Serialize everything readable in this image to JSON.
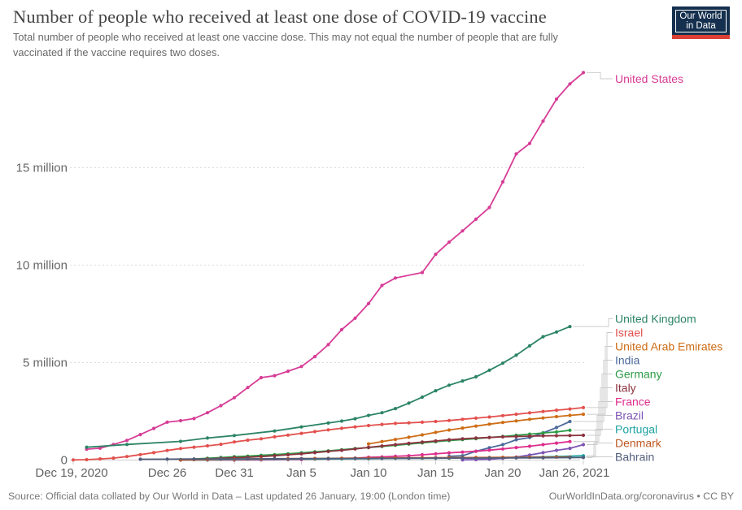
{
  "header": {
    "title": "Number of people who received at least one dose of COVID-19 vaccine",
    "subtitle": "Total number of people who received at least one vaccine dose. This may not equal the number of people that are fully vaccinated if the vaccine requires two doses.",
    "logo": {
      "line1": "Our World",
      "line2": "in Data",
      "bg_color": "#15304e",
      "accent_color": "#dc3f33"
    }
  },
  "footer": {
    "source_left": "Source: Official data collated by Our World in Data – Last updated 26 January, 19:00 (London time)",
    "source_right": "OurWorldInData.org/coronavirus • CC BY"
  },
  "chart_data": {
    "type": "line",
    "title": "Number of people who received at least one dose of COVID-19 vaccine",
    "x_unit": "days since Dec 19, 2020",
    "y_unit": "people (millions)",
    "ylim": [
      0,
      20.5
    ],
    "grid": true,
    "x_ticks": [
      {
        "day": 0,
        "label": "Dec 19, 2020"
      },
      {
        "day": 7,
        "label": "Dec 26"
      },
      {
        "day": 12,
        "label": "Dec 31"
      },
      {
        "day": 17,
        "label": "Jan 5"
      },
      {
        "day": 22,
        "label": "Jan 10"
      },
      {
        "day": 27,
        "label": "Jan 15"
      },
      {
        "day": 32,
        "label": "Jan 20"
      },
      {
        "day": 38,
        "label": "Jan 26, 2021"
      }
    ],
    "y_ticks": [
      {
        "value": 0,
        "label": "0"
      },
      {
        "value": 5,
        "label": "5 million"
      },
      {
        "value": 10,
        "label": "10 million"
      },
      {
        "value": 15,
        "label": "15 million"
      }
    ],
    "series": [
      {
        "name": "United States",
        "color": "#d73c96",
        "points": [
          [
            1,
            0.56
          ],
          [
            2,
            0.61
          ],
          [
            3,
            0.8
          ],
          [
            4,
            1.01
          ],
          [
            5,
            1.31
          ],
          [
            6,
            1.62
          ],
          [
            7,
            1.94
          ],
          [
            8,
            2.02
          ],
          [
            9,
            2.13
          ],
          [
            10,
            2.43
          ],
          [
            11,
            2.79
          ],
          [
            12,
            3.2
          ],
          [
            13,
            3.72
          ],
          [
            14,
            4.23
          ],
          [
            15,
            4.33
          ],
          [
            16,
            4.56
          ],
          [
            17,
            4.8
          ],
          [
            18,
            5.31
          ],
          [
            19,
            5.92
          ],
          [
            20,
            6.69
          ],
          [
            21,
            7.28
          ],
          [
            22,
            8.03
          ],
          [
            23,
            8.96
          ],
          [
            24,
            9.34
          ],
          [
            26,
            9.62
          ],
          [
            27,
            10.56
          ],
          [
            28,
            11.18
          ],
          [
            29,
            11.76
          ],
          [
            30,
            12.36
          ],
          [
            31,
            12.96
          ],
          [
            32,
            14.27
          ],
          [
            33,
            15.71
          ],
          [
            34,
            16.24
          ],
          [
            35,
            17.39
          ],
          [
            36,
            18.52
          ],
          [
            37,
            19.3
          ],
          [
            38,
            19.88
          ]
        ]
      },
      {
        "name": "United Kingdom",
        "color": "#2c8465",
        "points": [
          [
            1,
            0.66
          ],
          [
            4,
            0.8
          ],
          [
            8,
            0.96
          ],
          [
            10,
            1.13
          ],
          [
            12,
            1.26
          ],
          [
            15,
            1.49
          ],
          [
            17,
            1.7
          ],
          [
            19,
            1.9
          ],
          [
            20,
            2.0
          ],
          [
            21,
            2.12
          ],
          [
            22,
            2.29
          ],
          [
            23,
            2.43
          ],
          [
            24,
            2.64
          ],
          [
            25,
            2.92
          ],
          [
            26,
            3.23
          ],
          [
            27,
            3.56
          ],
          [
            28,
            3.84
          ],
          [
            29,
            4.06
          ],
          [
            30,
            4.27
          ],
          [
            31,
            4.61
          ],
          [
            32,
            4.97
          ],
          [
            33,
            5.38
          ],
          [
            34,
            5.86
          ],
          [
            35,
            6.33
          ],
          [
            36,
            6.57
          ],
          [
            37,
            6.85
          ]
        ]
      },
      {
        "name": "Israel",
        "color": "#e2514e",
        "points": [
          [
            0,
            0.01
          ],
          [
            1,
            0.02
          ],
          [
            2,
            0.06
          ],
          [
            3,
            0.1
          ],
          [
            4,
            0.18
          ],
          [
            5,
            0.28
          ],
          [
            6,
            0.38
          ],
          [
            7,
            0.49
          ],
          [
            8,
            0.59
          ],
          [
            9,
            0.66
          ],
          [
            10,
            0.73
          ],
          [
            11,
            0.81
          ],
          [
            12,
            0.93
          ],
          [
            13,
            1.02
          ],
          [
            14,
            1.09
          ],
          [
            15,
            1.19
          ],
          [
            16,
            1.28
          ],
          [
            17,
            1.37
          ],
          [
            18,
            1.46
          ],
          [
            19,
            1.55
          ],
          [
            20,
            1.63
          ],
          [
            21,
            1.7
          ],
          [
            22,
            1.77
          ],
          [
            23,
            1.83
          ],
          [
            24,
            1.88
          ],
          [
            25,
            1.91
          ],
          [
            26,
            1.94
          ],
          [
            27,
            1.98
          ],
          [
            28,
            2.03
          ],
          [
            29,
            2.09
          ],
          [
            30,
            2.15
          ],
          [
            31,
            2.21
          ],
          [
            32,
            2.28
          ],
          [
            33,
            2.35
          ],
          [
            34,
            2.42
          ],
          [
            35,
            2.49
          ],
          [
            36,
            2.56
          ],
          [
            37,
            2.62
          ],
          [
            38,
            2.69
          ]
        ]
      },
      {
        "name": "United Arab Emirates",
        "color": "#ce6d16",
        "points": [
          [
            22,
            0.83
          ],
          [
            23,
            0.95
          ],
          [
            24,
            1.06
          ],
          [
            25,
            1.17
          ],
          [
            26,
            1.29
          ],
          [
            27,
            1.42
          ],
          [
            28,
            1.54
          ],
          [
            29,
            1.64
          ],
          [
            30,
            1.74
          ],
          [
            31,
            1.84
          ],
          [
            32,
            1.93
          ],
          [
            33,
            2.01
          ],
          [
            34,
            2.09
          ],
          [
            35,
            2.16
          ],
          [
            36,
            2.23
          ],
          [
            37,
            2.29
          ],
          [
            38,
            2.35
          ]
        ]
      },
      {
        "name": "India",
        "color": "#4c6a9c",
        "points": [
          [
            28,
            0.19
          ],
          [
            29,
            0.22
          ],
          [
            30,
            0.45
          ],
          [
            31,
            0.63
          ],
          [
            32,
            0.79
          ],
          [
            33,
            1.04
          ],
          [
            34,
            1.16
          ],
          [
            35,
            1.39
          ],
          [
            36,
            1.67
          ],
          [
            37,
            1.98
          ]
        ]
      },
      {
        "name": "Germany",
        "color": "#2c9b46",
        "points": [
          [
            8,
            0.02
          ],
          [
            9,
            0.05
          ],
          [
            10,
            0.09
          ],
          [
            11,
            0.13
          ],
          [
            12,
            0.17
          ],
          [
            13,
            0.2
          ],
          [
            14,
            0.24
          ],
          [
            15,
            0.28
          ],
          [
            16,
            0.32
          ],
          [
            17,
            0.37
          ],
          [
            18,
            0.42
          ],
          [
            19,
            0.47
          ],
          [
            20,
            0.53
          ],
          [
            21,
            0.59
          ],
          [
            22,
            0.64
          ],
          [
            23,
            0.7
          ],
          [
            24,
            0.76
          ],
          [
            25,
            0.82
          ],
          [
            26,
            0.88
          ],
          [
            27,
            0.94
          ],
          [
            28,
            1.0
          ],
          [
            29,
            1.05
          ],
          [
            30,
            1.1
          ],
          [
            31,
            1.16
          ],
          [
            32,
            1.21
          ],
          [
            33,
            1.27
          ],
          [
            34,
            1.33
          ],
          [
            35,
            1.39
          ],
          [
            36,
            1.44
          ],
          [
            37,
            1.53
          ]
        ]
      },
      {
        "name": "Italy",
        "color": "#8c3340",
        "points": [
          [
            8,
            0.01
          ],
          [
            9,
            0.03
          ],
          [
            10,
            0.06
          ],
          [
            11,
            0.09
          ],
          [
            12,
            0.12
          ],
          [
            13,
            0.14
          ],
          [
            14,
            0.18
          ],
          [
            15,
            0.22
          ],
          [
            16,
            0.27
          ],
          [
            17,
            0.32
          ],
          [
            18,
            0.38
          ],
          [
            19,
            0.44
          ],
          [
            20,
            0.5
          ],
          [
            21,
            0.57
          ],
          [
            22,
            0.65
          ],
          [
            23,
            0.72
          ],
          [
            24,
            0.79
          ],
          [
            25,
            0.86
          ],
          [
            26,
            0.92
          ],
          [
            27,
            0.98
          ],
          [
            28,
            1.04
          ],
          [
            29,
            1.09
          ],
          [
            30,
            1.13
          ],
          [
            31,
            1.16
          ],
          [
            32,
            1.19
          ],
          [
            33,
            1.21
          ],
          [
            34,
            1.23
          ],
          [
            35,
            1.24
          ],
          [
            36,
            1.25
          ],
          [
            37,
            1.26
          ],
          [
            38,
            1.27
          ]
        ]
      },
      {
        "name": "France",
        "color": "#dc2e8c",
        "points": [
          [
            8,
            0.0
          ],
          [
            10,
            0.001
          ],
          [
            12,
            0.002
          ],
          [
            14,
            0.01
          ],
          [
            16,
            0.02
          ],
          [
            17,
            0.03
          ],
          [
            18,
            0.05
          ],
          [
            19,
            0.06
          ],
          [
            20,
            0.08
          ],
          [
            21,
            0.1
          ],
          [
            22,
            0.14
          ],
          [
            23,
            0.16
          ],
          [
            24,
            0.19
          ],
          [
            25,
            0.22
          ],
          [
            26,
            0.27
          ],
          [
            27,
            0.32
          ],
          [
            28,
            0.37
          ],
          [
            29,
            0.41
          ],
          [
            30,
            0.45
          ],
          [
            31,
            0.51
          ],
          [
            32,
            0.57
          ],
          [
            33,
            0.64
          ],
          [
            34,
            0.71
          ],
          [
            35,
            0.79
          ],
          [
            36,
            0.87
          ],
          [
            37,
            0.95
          ]
        ]
      },
      {
        "name": "Brazil",
        "color": "#7e54b4",
        "points": [
          [
            29,
            0.01
          ],
          [
            30,
            0.02
          ],
          [
            31,
            0.04
          ],
          [
            32,
            0.09
          ],
          [
            33,
            0.15
          ],
          [
            34,
            0.26
          ],
          [
            35,
            0.38
          ],
          [
            36,
            0.5
          ],
          [
            37,
            0.6
          ],
          [
            38,
            0.79
          ]
        ]
      },
      {
        "name": "Portugal",
        "color": "#1fa3a0",
        "points": [
          [
            8,
            0.004
          ],
          [
            10,
            0.01
          ],
          [
            12,
            0.02
          ],
          [
            14,
            0.032
          ],
          [
            16,
            0.042
          ],
          [
            18,
            0.052
          ],
          [
            20,
            0.062
          ],
          [
            22,
            0.072
          ],
          [
            24,
            0.082
          ],
          [
            26,
            0.09
          ],
          [
            28,
            0.1
          ],
          [
            30,
            0.11
          ],
          [
            32,
            0.13
          ],
          [
            34,
            0.15
          ],
          [
            36,
            0.18
          ],
          [
            38,
            0.22
          ]
        ]
      },
      {
        "name": "Denmark",
        "color": "#c05a24",
        "points": [
          [
            8,
            0.01
          ],
          [
            9,
            0.02
          ],
          [
            10,
            0.03
          ],
          [
            11,
            0.04
          ],
          [
            12,
            0.046
          ],
          [
            13,
            0.05
          ],
          [
            14,
            0.06
          ],
          [
            15,
            0.065
          ],
          [
            16,
            0.07
          ],
          [
            17,
            0.076
          ],
          [
            18,
            0.08
          ],
          [
            19,
            0.085
          ],
          [
            20,
            0.09
          ],
          [
            21,
            0.095
          ],
          [
            22,
            0.1
          ],
          [
            23,
            0.104
          ],
          [
            24,
            0.108
          ],
          [
            25,
            0.112
          ],
          [
            26,
            0.116
          ],
          [
            27,
            0.12
          ],
          [
            28,
            0.123
          ],
          [
            29,
            0.126
          ],
          [
            30,
            0.13
          ],
          [
            31,
            0.133
          ],
          [
            32,
            0.136
          ],
          [
            33,
            0.14
          ],
          [
            34,
            0.143
          ],
          [
            35,
            0.146
          ],
          [
            36,
            0.15
          ],
          [
            37,
            0.153
          ]
        ]
      },
      {
        "name": "Bahrain",
        "color": "#515d7c",
        "points": [
          [
            5,
            0.04
          ],
          [
            7,
            0.047
          ],
          [
            9,
            0.053
          ],
          [
            11,
            0.058
          ],
          [
            13,
            0.062
          ],
          [
            15,
            0.066
          ],
          [
            17,
            0.07
          ],
          [
            19,
            0.075
          ],
          [
            21,
            0.08
          ],
          [
            23,
            0.085
          ],
          [
            25,
            0.09
          ],
          [
            27,
            0.095
          ],
          [
            29,
            0.1
          ],
          [
            31,
            0.106
          ],
          [
            33,
            0.112
          ],
          [
            35,
            0.118
          ],
          [
            37,
            0.124
          ],
          [
            38,
            0.128
          ]
        ]
      }
    ]
  }
}
